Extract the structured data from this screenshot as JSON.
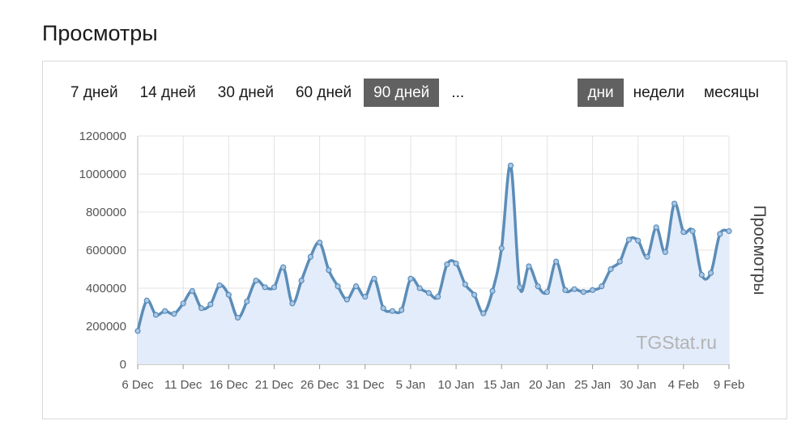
{
  "page_title": "Просмотры",
  "range_tabs": [
    {
      "label": "7 дней",
      "active": false
    },
    {
      "label": "14 дней",
      "active": false
    },
    {
      "label": "30 дней",
      "active": false
    },
    {
      "label": "60 дней",
      "active": false
    },
    {
      "label": "90 дней",
      "active": true
    },
    {
      "label": "...",
      "active": false
    }
  ],
  "granularity_tabs": [
    {
      "label": "дни",
      "active": true
    },
    {
      "label": "недели",
      "active": false
    },
    {
      "label": "месяцы",
      "active": false
    }
  ],
  "watermark": "TGStat.ru",
  "colors": {
    "line": "#5b8db8",
    "fill": "#e3ecfb",
    "grid": "#e3e3e3",
    "active_tab": "#616161"
  },
  "chart_data": {
    "type": "area",
    "ylabel": "Просмотры",
    "ylim": [
      0,
      1200000
    ],
    "yticks": [
      0,
      200000,
      400000,
      600000,
      800000,
      1000000,
      1200000
    ],
    "ytick_labels": [
      "0",
      "200000",
      "400000",
      "600000",
      "800000",
      "1000000",
      "1200000"
    ],
    "xticks": [
      "6 Dec",
      "11 Dec",
      "16 Dec",
      "21 Dec",
      "26 Dec",
      "31 Dec",
      "5 Jan",
      "10 Jan",
      "15 Jan",
      "20 Jan",
      "25 Jan",
      "30 Jan",
      "4 Feb",
      "9 Feb"
    ],
    "x": [
      "6 Dec",
      "7 Dec",
      "8 Dec",
      "9 Dec",
      "10 Dec",
      "11 Dec",
      "12 Dec",
      "13 Dec",
      "14 Dec",
      "15 Dec",
      "16 Dec",
      "17 Dec",
      "18 Dec",
      "19 Dec",
      "20 Dec",
      "21 Dec",
      "22 Dec",
      "23 Dec",
      "24 Dec",
      "25 Dec",
      "26 Dec",
      "27 Dec",
      "28 Dec",
      "29 Dec",
      "30 Dec",
      "31 Dec",
      "1 Jan",
      "2 Jan",
      "3 Jan",
      "4 Jan",
      "5 Jan",
      "6 Jan",
      "7 Jan",
      "8 Jan",
      "9 Jan",
      "10 Jan",
      "11 Jan",
      "12 Jan",
      "13 Jan",
      "14 Jan",
      "15 Jan",
      "16 Jan",
      "17 Jan",
      "18 Jan",
      "19 Jan",
      "20 Jan",
      "21 Jan",
      "22 Jan",
      "23 Jan",
      "24 Jan",
      "25 Jan",
      "26 Jan",
      "27 Jan",
      "28 Jan",
      "29 Jan",
      "30 Jan",
      "31 Jan",
      "1 Feb",
      "2 Feb",
      "3 Feb",
      "4 Feb",
      "5 Feb",
      "6 Feb",
      "7 Feb",
      "8 Feb",
      "9 Feb"
    ],
    "series": [
      {
        "values": [
          175000,
          335000,
          260000,
          280000,
          265000,
          320000,
          385000,
          295000,
          315000,
          415000,
          365000,
          245000,
          330000,
          440000,
          405000,
          405000,
          510000,
          320000,
          440000,
          565000,
          640000,
          495000,
          410000,
          340000,
          410000,
          355000,
          450000,
          295000,
          280000,
          285000,
          450000,
          400000,
          375000,
          355000,
          525000,
          530000,
          420000,
          365000,
          268000,
          385000,
          610000,
          1045000,
          405000,
          515000,
          410000,
          380000,
          540000,
          390000,
          395000,
          380000,
          390000,
          410000,
          500000,
          540000,
          655000,
          650000,
          565000,
          720000,
          590000,
          845000,
          695000,
          700000,
          470000,
          480000,
          685000,
          700000
        ]
      }
    ]
  }
}
